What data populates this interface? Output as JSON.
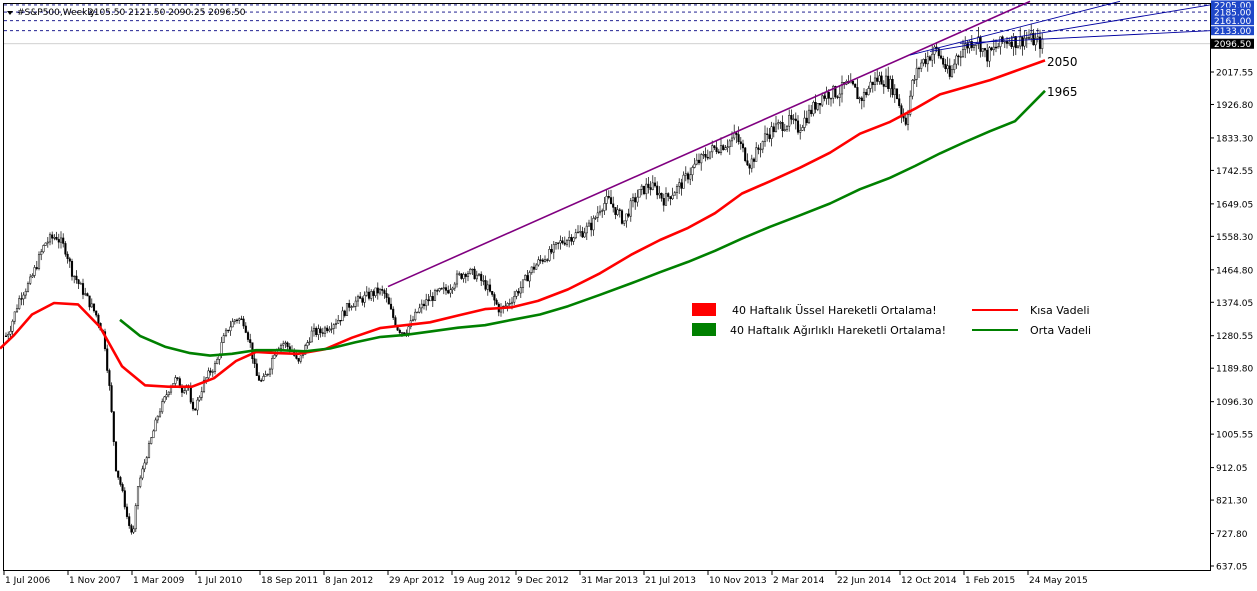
{
  "header": {
    "symbol": "#S&P500,Weekly",
    "ohlc": "2105.50 2121.50 2090.25 2096.50"
  },
  "colors": {
    "background": "#ffffff",
    "candle": "#000000",
    "ema40": "#ff0000",
    "wma40": "#008000",
    "channel": "#800080",
    "trendlines": "#0000a0",
    "price_tag_bg": "#000000",
    "level_tag_bg": "#1f47c8"
  },
  "chart_data": {
    "type": "candlestick",
    "timeframe": "Weekly",
    "x_labels": [
      "1 Jul 2006",
      "1 Nov 2007",
      "1 Mar 2009",
      "1 Jul 2010",
      "18 Sep 2011",
      "8 Jan 2012",
      "29 Apr 2012",
      "19 Aug 2012",
      "9 Dec 2012",
      "31 Mar 2013",
      "21 Jul 2013",
      "10 Nov 2013",
      "2 Mar 2014",
      "22 Jun 2014",
      "12 Oct 2014",
      "1 Feb 2015",
      "24 May 2015"
    ],
    "y_ticks": [
      "2017.55",
      "1926.80",
      "1833.30",
      "1742.55",
      "1649.05",
      "1558.30",
      "1464.80",
      "1374.05",
      "1280.55",
      "1189.80",
      "1096.30",
      "1005.55",
      "912.05",
      "821.30",
      "727.80",
      "637.05"
    ],
    "ylim": [
      637.05,
      2215
    ],
    "price_levels": [
      "2205.00",
      "2185.00",
      "2161.00",
      "2133.00"
    ],
    "current_price": "2096.50",
    "series": [
      {
        "name": "40 Haftalık Üssel Hareketli Ortalama!",
        "color": "#ff0000",
        "label": "Kısa Vadeli",
        "end_value": "2050",
        "points": [
          [
            0,
            1245
          ],
          [
            14,
            1282
          ],
          [
            32,
            1340
          ],
          [
            54,
            1372
          ],
          [
            78,
            1368
          ],
          [
            100,
            1305
          ],
          [
            122,
            1195
          ],
          [
            145,
            1142
          ],
          [
            168,
            1138
          ],
          [
            192,
            1138
          ],
          [
            214,
            1162
          ],
          [
            236,
            1210
          ],
          [
            256,
            1235
          ],
          [
            276,
            1232
          ],
          [
            298,
            1230
          ],
          [
            325,
            1243
          ],
          [
            352,
            1275
          ],
          [
            380,
            1302
          ],
          [
            405,
            1310
          ],
          [
            430,
            1318
          ],
          [
            458,
            1337
          ],
          [
            485,
            1355
          ],
          [
            512,
            1360
          ],
          [
            538,
            1378
          ],
          [
            568,
            1410
          ],
          [
            600,
            1455
          ],
          [
            632,
            1508
          ],
          [
            660,
            1548
          ],
          [
            688,
            1582
          ],
          [
            715,
            1623
          ],
          [
            742,
            1678
          ],
          [
            770,
            1712
          ],
          [
            800,
            1750
          ],
          [
            830,
            1792
          ],
          [
            860,
            1845
          ],
          [
            890,
            1878
          ],
          [
            915,
            1915
          ],
          [
            940,
            1955
          ],
          [
            965,
            1975
          ],
          [
            990,
            1995
          ],
          [
            1015,
            2020
          ],
          [
            1045,
            2050
          ]
        ]
      },
      {
        "name": "40 Haftalık Ağırlıklı Hareketli Ortalama!",
        "color": "#008000",
        "label": "Orta Vadeli",
        "end_value": "1965",
        "points": [
          [
            120,
            1325
          ],
          [
            140,
            1280
          ],
          [
            165,
            1250
          ],
          [
            190,
            1232
          ],
          [
            210,
            1225
          ],
          [
            232,
            1230
          ],
          [
            256,
            1240
          ],
          [
            280,
            1240
          ],
          [
            305,
            1237
          ],
          [
            330,
            1245
          ],
          [
            355,
            1262
          ],
          [
            380,
            1277
          ],
          [
            405,
            1283
          ],
          [
            430,
            1292
          ],
          [
            458,
            1303
          ],
          [
            485,
            1310
          ],
          [
            512,
            1325
          ],
          [
            540,
            1340
          ],
          [
            568,
            1363
          ],
          [
            600,
            1395
          ],
          [
            632,
            1428
          ],
          [
            660,
            1458
          ],
          [
            688,
            1487
          ],
          [
            715,
            1518
          ],
          [
            742,
            1552
          ],
          [
            770,
            1585
          ],
          [
            800,
            1617
          ],
          [
            830,
            1650
          ],
          [
            860,
            1690
          ],
          [
            890,
            1722
          ],
          [
            915,
            1755
          ],
          [
            940,
            1790
          ],
          [
            965,
            1822
          ],
          [
            990,
            1852
          ],
          [
            1015,
            1880
          ],
          [
            1045,
            1965
          ]
        ]
      }
    ]
  },
  "legend": {
    "entries": [
      {
        "text": "40 Haftalık Üssel Hareketli Ortalama!",
        "line_label": "Kısa Vadeli",
        "color": "#ff0000"
      },
      {
        "text": "40 Haftalık Ağırlıklı Hareketli Ortalama!",
        "line_label": "Orta Vadeli",
        "color": "#008000"
      }
    ]
  },
  "annotations": {
    "ema_value": "2050",
    "wma_value": "1965"
  }
}
